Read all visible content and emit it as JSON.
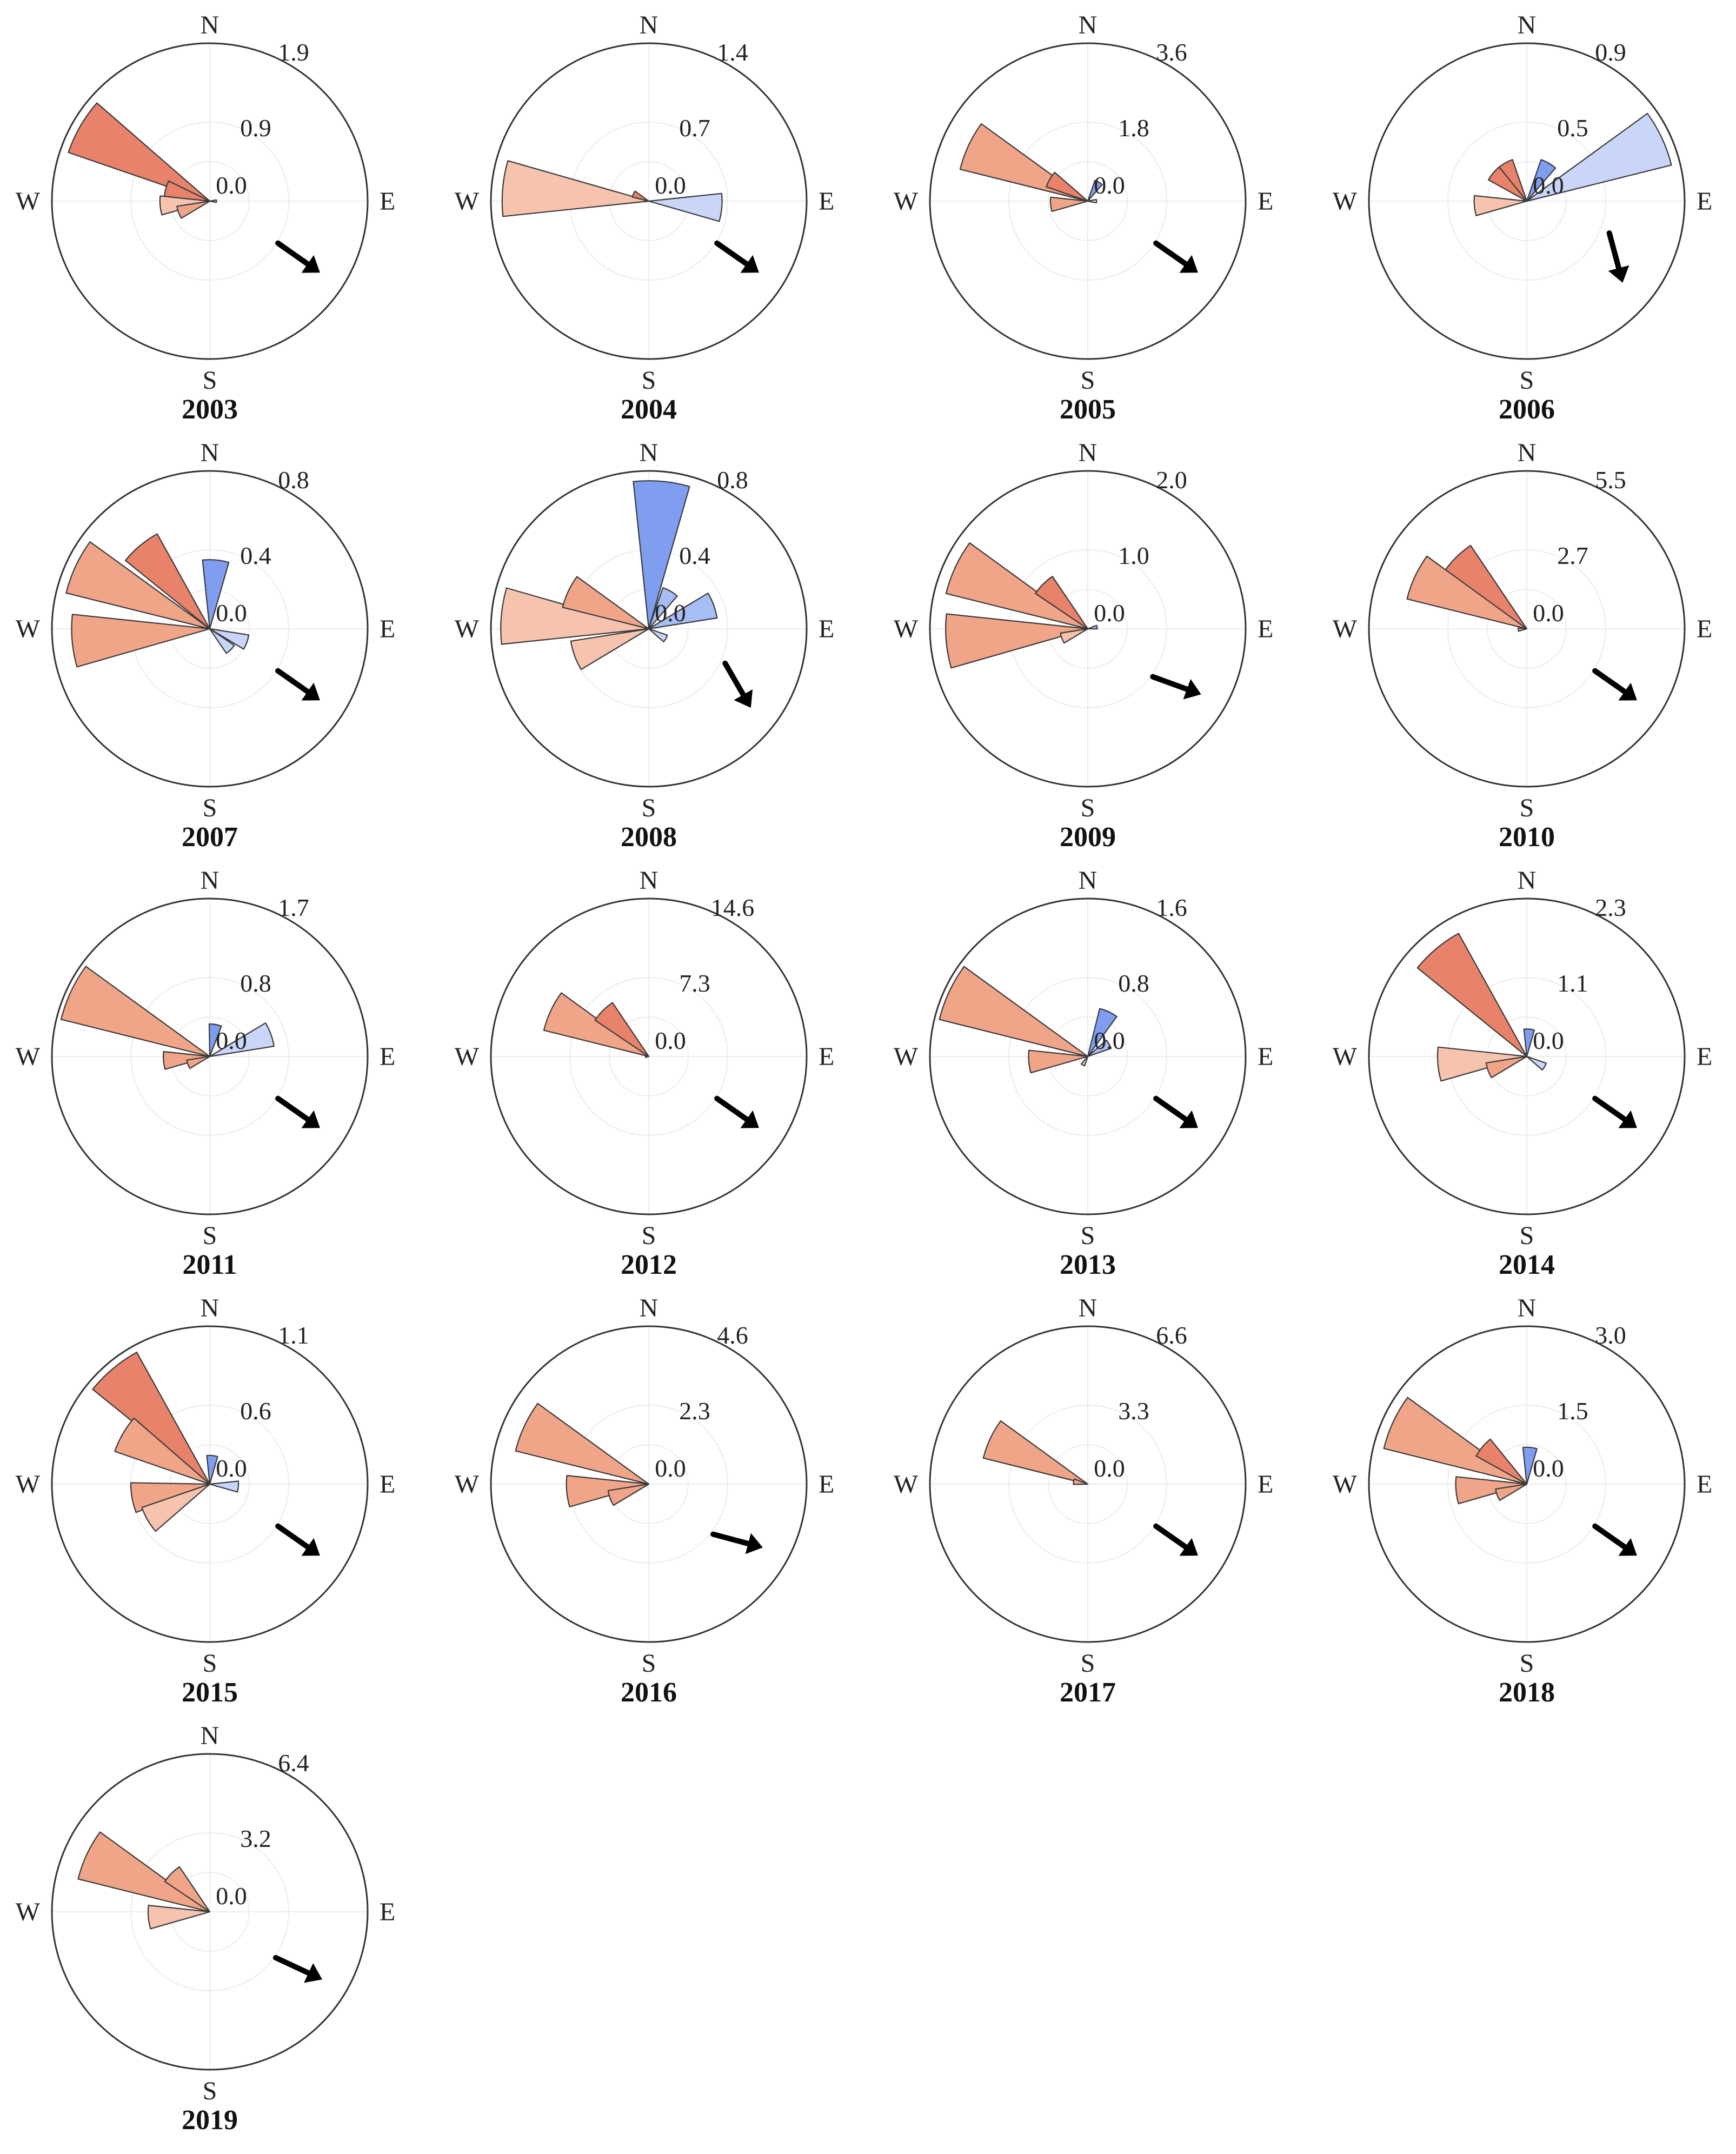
{
  "figure": {
    "compass_labels": {
      "n": "N",
      "e": "E",
      "s": "S",
      "w": "W"
    },
    "colors": {
      "warm_dark": "#e8826a",
      "warm_mid": "#f0a589",
      "warm_light": "#f6c3ae",
      "cool_dark": "#7f9ef0",
      "cool_mid": "#a7bdf5",
      "cool_light": "#c9d6fa",
      "outline": "#3a3a3a",
      "circle": "#333333",
      "grid": "#ececec",
      "arrow": "#000000"
    }
  },
  "chart_data": [
    {
      "type": "polar-bar",
      "title": "2003",
      "ring_labels": [
        "1.9",
        "0.9",
        "0.0"
      ],
      "rmax": 1.9,
      "arrow_bearing": 125,
      "bars": [
        {
          "bearing": 300,
          "value": 1.8,
          "color": "warm_dark"
        },
        {
          "bearing": 285,
          "value": 0.55,
          "color": "warm_dark"
        },
        {
          "bearing": 265,
          "value": 0.6,
          "color": "warm_light"
        },
        {
          "bearing": 250,
          "value": 0.4,
          "color": "warm_mid"
        },
        {
          "bearing": 90,
          "value": 0.08,
          "color": "cool_mid"
        }
      ]
    },
    {
      "type": "polar-bar",
      "title": "2004",
      "ring_labels": [
        "1.4",
        "0.7",
        "0.0"
      ],
      "rmax": 1.4,
      "arrow_bearing": 125,
      "bars": [
        {
          "bearing": 275,
          "value": 1.3,
          "color": "warm_light"
        },
        {
          "bearing": 295,
          "value": 0.15,
          "color": "warm_dark"
        },
        {
          "bearing": 95,
          "value": 0.65,
          "color": "cool_light"
        }
      ]
    },
    {
      "type": "polar-bar",
      "title": "2005",
      "ring_labels": [
        "3.6",
        "1.8",
        "0.0"
      ],
      "rmax": 3.6,
      "arrow_bearing": 125,
      "bars": [
        {
          "bearing": 295,
          "value": 3.0,
          "color": "warm_mid"
        },
        {
          "bearing": 300,
          "value": 1.0,
          "color": "warm_dark"
        },
        {
          "bearing": 265,
          "value": 0.85,
          "color": "warm_mid"
        },
        {
          "bearing": 30,
          "value": 0.5,
          "color": "cool_dark"
        },
        {
          "bearing": 90,
          "value": 0.2,
          "color": "cool_light"
        }
      ]
    },
    {
      "type": "polar-bar",
      "title": "2006",
      "ring_labels": [
        "0.9",
        "0.5",
        "0.0"
      ],
      "rmax": 0.9,
      "arrow_bearing": 165,
      "bars": [
        {
          "bearing": 65,
          "value": 0.85,
          "color": "cool_light"
        },
        {
          "bearing": 30,
          "value": 0.25,
          "color": "cool_dark"
        },
        {
          "bearing": 330,
          "value": 0.25,
          "color": "warm_dark"
        },
        {
          "bearing": 310,
          "value": 0.25,
          "color": "warm_dark"
        },
        {
          "bearing": 265,
          "value": 0.3,
          "color": "warm_light"
        }
      ]
    },
    {
      "type": "polar-bar",
      "title": "2007",
      "ring_labels": [
        "0.8",
        "0.4",
        "0.0"
      ],
      "rmax": 0.8,
      "arrow_bearing": 125,
      "bars": [
        {
          "bearing": 320,
          "value": 0.55,
          "color": "warm_dark"
        },
        {
          "bearing": 295,
          "value": 0.75,
          "color": "warm_mid"
        },
        {
          "bearing": 265,
          "value": 0.7,
          "color": "warm_mid"
        },
        {
          "bearing": 5,
          "value": 0.35,
          "color": "cool_dark"
        },
        {
          "bearing": 110,
          "value": 0.2,
          "color": "cool_light"
        },
        {
          "bearing": 135,
          "value": 0.15,
          "color": "cool_light"
        }
      ]
    },
    {
      "type": "polar-bar",
      "title": "2008",
      "ring_labels": [
        "0.8",
        "0.4",
        "0.0"
      ],
      "rmax": 0.8,
      "arrow_bearing": 150,
      "bars": [
        {
          "bearing": 5,
          "value": 0.75,
          "color": "cool_dark"
        },
        {
          "bearing": 30,
          "value": 0.22,
          "color": "cool_mid"
        },
        {
          "bearing": 70,
          "value": 0.35,
          "color": "cool_mid"
        },
        {
          "bearing": 120,
          "value": 0.1,
          "color": "cool_light"
        },
        {
          "bearing": 275,
          "value": 0.75,
          "color": "warm_light"
        },
        {
          "bearing": 295,
          "value": 0.45,
          "color": "warm_mid"
        },
        {
          "bearing": 250,
          "value": 0.4,
          "color": "warm_light"
        }
      ]
    },
    {
      "type": "polar-bar",
      "title": "2009",
      "ring_labels": [
        "2.0",
        "1.0",
        "0.0"
      ],
      "rmax": 2.0,
      "arrow_bearing": 110,
      "bars": [
        {
          "bearing": 295,
          "value": 1.85,
          "color": "warm_mid"
        },
        {
          "bearing": 315,
          "value": 0.8,
          "color": "warm_dark"
        },
        {
          "bearing": 265,
          "value": 1.8,
          "color": "warm_mid"
        },
        {
          "bearing": 250,
          "value": 0.35,
          "color": "warm_light"
        },
        {
          "bearing": 80,
          "value": 0.12,
          "color": "cool_mid"
        }
      ]
    },
    {
      "type": "polar-bar",
      "title": "2010",
      "ring_labels": [
        "5.5",
        "2.7",
        "0.0"
      ],
      "rmax": 5.5,
      "arrow_bearing": 125,
      "bars": [
        {
          "bearing": 315,
          "value": 3.5,
          "color": "warm_dark"
        },
        {
          "bearing": 295,
          "value": 4.3,
          "color": "warm_mid"
        },
        {
          "bearing": 265,
          "value": 0.3,
          "color": "warm_mid"
        }
      ]
    },
    {
      "type": "polar-bar",
      "title": "2011",
      "ring_labels": [
        "1.7",
        "0.8",
        "0.0"
      ],
      "rmax": 1.7,
      "arrow_bearing": 125,
      "bars": [
        {
          "bearing": 295,
          "value": 1.65,
          "color": "warm_mid"
        },
        {
          "bearing": 265,
          "value": 0.5,
          "color": "warm_mid"
        },
        {
          "bearing": 250,
          "value": 0.25,
          "color": "warm_mid"
        },
        {
          "bearing": 10,
          "value": 0.35,
          "color": "cool_dark"
        },
        {
          "bearing": 70,
          "value": 0.7,
          "color": "cool_light"
        }
      ]
    },
    {
      "type": "polar-bar",
      "title": "2012",
      "ring_labels": [
        "14.6",
        "7.3",
        "0.0"
      ],
      "rmax": 14.6,
      "arrow_bearing": 125,
      "bars": [
        {
          "bearing": 295,
          "value": 10.0,
          "color": "warm_mid"
        },
        {
          "bearing": 315,
          "value": 6.0,
          "color": "warm_dark"
        },
        {
          "bearing": 265,
          "value": 0.3,
          "color": "warm_mid"
        }
      ]
    },
    {
      "type": "polar-bar",
      "title": "2013",
      "ring_labels": [
        "1.6",
        "0.8",
        "0.0"
      ],
      "rmax": 1.6,
      "arrow_bearing": 125,
      "bars": [
        {
          "bearing": 295,
          "value": 1.55,
          "color": "warm_mid"
        },
        {
          "bearing": 265,
          "value": 0.6,
          "color": "warm_mid"
        },
        {
          "bearing": 25,
          "value": 0.5,
          "color": "cool_dark"
        },
        {
          "bearing": 60,
          "value": 0.25,
          "color": "cool_mid"
        },
        {
          "bearing": 210,
          "value": 0.1,
          "color": "warm_light"
        }
      ]
    },
    {
      "type": "polar-bar",
      "title": "2014",
      "ring_labels": [
        "2.3",
        "1.1",
        "0.0"
      ],
      "rmax": 2.3,
      "arrow_bearing": 125,
      "bars": [
        {
          "bearing": 320,
          "value": 2.05,
          "color": "warm_dark"
        },
        {
          "bearing": 265,
          "value": 1.3,
          "color": "warm_light"
        },
        {
          "bearing": 250,
          "value": 0.6,
          "color": "warm_mid"
        },
        {
          "bearing": 5,
          "value": 0.4,
          "color": "cool_dark"
        },
        {
          "bearing": 120,
          "value": 0.3,
          "color": "cool_light"
        }
      ]
    },
    {
      "type": "polar-bar",
      "title": "2015",
      "ring_labels": [
        "1.1",
        "0.6",
        "0.0"
      ],
      "rmax": 1.1,
      "arrow_bearing": 125,
      "bars": [
        {
          "bearing": 320,
          "value": 1.05,
          "color": "warm_dark"
        },
        {
          "bearing": 300,
          "value": 0.7,
          "color": "warm_mid"
        },
        {
          "bearing": 260,
          "value": 0.55,
          "color": "warm_mid"
        },
        {
          "bearing": 240,
          "value": 0.5,
          "color": "warm_light"
        },
        {
          "bearing": 5,
          "value": 0.2,
          "color": "cool_dark"
        },
        {
          "bearing": 95,
          "value": 0.2,
          "color": "cool_light"
        }
      ]
    },
    {
      "type": "polar-bar",
      "title": "2016",
      "ring_labels": [
        "4.6",
        "2.3",
        "0.0"
      ],
      "rmax": 4.6,
      "arrow_bearing": 105,
      "bars": [
        {
          "bearing": 295,
          "value": 4.0,
          "color": "warm_mid"
        },
        {
          "bearing": 265,
          "value": 2.4,
          "color": "warm_mid"
        },
        {
          "bearing": 250,
          "value": 1.2,
          "color": "warm_mid"
        }
      ]
    },
    {
      "type": "polar-bar",
      "title": "2017",
      "ring_labels": [
        "6.6",
        "3.3",
        "0.0"
      ],
      "rmax": 6.6,
      "arrow_bearing": 125,
      "bars": [
        {
          "bearing": 295,
          "value": 4.5,
          "color": "warm_mid"
        },
        {
          "bearing": 280,
          "value": 0.6,
          "color": "warm_mid"
        }
      ]
    },
    {
      "type": "polar-bar",
      "title": "2018",
      "ring_labels": [
        "3.0",
        "1.5",
        "0.0"
      ],
      "rmax": 3.0,
      "arrow_bearing": 125,
      "bars": [
        {
          "bearing": 295,
          "value": 2.8,
          "color": "warm_mid"
        },
        {
          "bearing": 310,
          "value": 1.1,
          "color": "warm_dark"
        },
        {
          "bearing": 265,
          "value": 1.35,
          "color": "warm_mid"
        },
        {
          "bearing": 250,
          "value": 0.6,
          "color": "warm_mid"
        },
        {
          "bearing": 5,
          "value": 0.7,
          "color": "cool_dark"
        }
      ]
    },
    {
      "type": "polar-bar",
      "title": "2019",
      "ring_labels": [
        "6.4",
        "3.2",
        "0.0"
      ],
      "rmax": 6.4,
      "arrow_bearing": 115,
      "bars": [
        {
          "bearing": 295,
          "value": 5.5,
          "color": "warm_mid"
        },
        {
          "bearing": 315,
          "value": 2.2,
          "color": "warm_mid"
        },
        {
          "bearing": 265,
          "value": 2.5,
          "color": "warm_light"
        }
      ]
    }
  ]
}
